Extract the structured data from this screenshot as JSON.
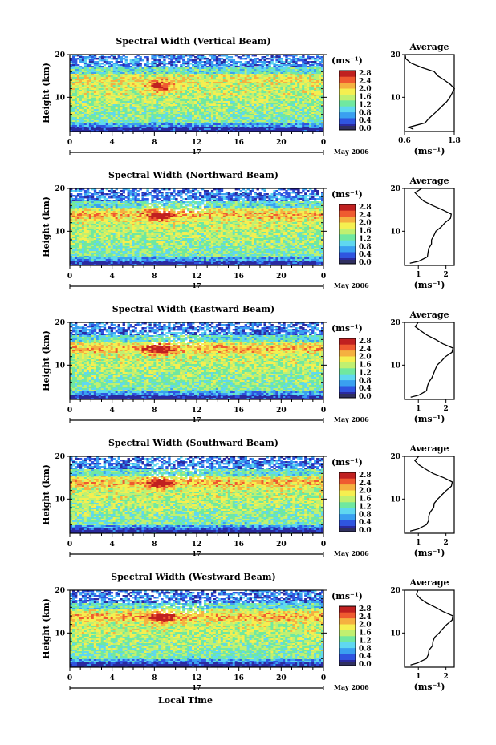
{
  "figure": {
    "common": {
      "ylabel": "Height (km)",
      "x_ticks": [
        "0",
        "4",
        "8",
        "12",
        "16",
        "20",
        "0"
      ],
      "y_ticks": [
        "20",
        "10"
      ],
      "day_label": "17",
      "date_label": "May 2006",
      "unit_label": "(ms⁻¹)",
      "colorbar_ticks": [
        "2.8",
        "2.4",
        "2.0",
        "1.6",
        "1.2",
        "0.8",
        "0.4",
        "0.0"
      ],
      "avg_title": "Average",
      "avg_xlabel": "(ms⁻¹)",
      "xlabel": "Local Time"
    },
    "colors": {
      "scale": [
        "#2a2aa0",
        "#2f55e0",
        "#3aa0f0",
        "#5fd8f0",
        "#70e8a0",
        "#c0f070",
        "#f5ef50",
        "#f5b040",
        "#ef5a30",
        "#c02020"
      ]
    }
  },
  "chart_data": [
    {
      "type": "heatmap",
      "title": "Spectral Width (Vertical Beam)",
      "x_range": [
        0,
        24
      ],
      "y_range": [
        2,
        20
      ],
      "z_range": [
        0.0,
        3.0
      ],
      "avg_profile": {
        "x_ticks": [
          "0.6",
          "1.8"
        ],
        "xlim": [
          0.6,
          1.8
        ],
        "height": [
          2.5,
          3,
          4,
          5,
          6,
          7,
          8,
          9,
          10,
          11,
          12,
          13,
          14,
          15,
          16,
          17,
          18,
          19,
          20
        ],
        "value": [
          0.8,
          0.7,
          1.1,
          1.2,
          1.3,
          1.4,
          1.5,
          1.6,
          1.7,
          1.75,
          1.8,
          1.7,
          1.55,
          1.4,
          1.3,
          1.0,
          0.75,
          0.65,
          0.6
        ]
      }
    },
    {
      "type": "heatmap",
      "title": "Spectral Width (Northward Beam)",
      "x_range": [
        0,
        24
      ],
      "y_range": [
        2,
        20
      ],
      "z_range": [
        0.0,
        3.0
      ],
      "avg_profile": {
        "x_ticks": [
          "1",
          "2"
        ],
        "xlim": [
          0.5,
          2.3
        ],
        "height": [
          2.5,
          3,
          4,
          5,
          6,
          7,
          8,
          9,
          10,
          11,
          12,
          13,
          14,
          15,
          16,
          17,
          18,
          19,
          20
        ],
        "value": [
          0.7,
          1.0,
          1.3,
          1.35,
          1.4,
          1.45,
          1.5,
          1.55,
          1.65,
          1.8,
          1.95,
          2.15,
          2.2,
          1.9,
          1.5,
          1.2,
          1.0,
          0.9,
          1.1
        ]
      }
    },
    {
      "type": "heatmap",
      "title": "Spectral Width (Eastward Beam)",
      "x_range": [
        0,
        24
      ],
      "y_range": [
        2,
        20
      ],
      "z_range": [
        0.0,
        3.0
      ],
      "avg_profile": {
        "x_ticks": [
          "1",
          "2"
        ],
        "xlim": [
          0.5,
          2.3
        ],
        "height": [
          2.5,
          3,
          4,
          5,
          6,
          7,
          8,
          9,
          10,
          11,
          12,
          13,
          14,
          15,
          16,
          17,
          18,
          19,
          20
        ],
        "value": [
          0.7,
          1.0,
          1.3,
          1.35,
          1.4,
          1.5,
          1.55,
          1.6,
          1.7,
          1.85,
          2.0,
          2.2,
          2.25,
          1.9,
          1.6,
          1.3,
          1.1,
          0.9,
          1.0
        ]
      }
    },
    {
      "type": "heatmap",
      "title": "Spectral Width (Southward Beam)",
      "x_range": [
        0,
        24
      ],
      "y_range": [
        2,
        20
      ],
      "z_range": [
        0.0,
        3.0
      ],
      "avg_profile": {
        "x_ticks": [
          "1",
          "2"
        ],
        "xlim": [
          0.5,
          2.3
        ],
        "height": [
          2.5,
          3,
          4,
          5,
          6,
          7,
          8,
          9,
          10,
          11,
          12,
          13,
          14,
          15,
          16,
          17,
          18,
          19,
          20
        ],
        "value": [
          0.7,
          1.0,
          1.3,
          1.35,
          1.4,
          1.45,
          1.55,
          1.6,
          1.7,
          1.85,
          2.0,
          2.2,
          2.25,
          1.95,
          1.55,
          1.25,
          1.05,
          0.9,
          1.0
        ]
      }
    },
    {
      "type": "heatmap",
      "title": "Spectral Width (Westward Beam)",
      "x_range": [
        0,
        24
      ],
      "y_range": [
        2,
        20
      ],
      "z_range": [
        0.0,
        3.0
      ],
      "avg_profile": {
        "x_ticks": [
          "1",
          "2"
        ],
        "xlim": [
          0.5,
          2.3
        ],
        "height": [
          2.5,
          3,
          4,
          5,
          6,
          7,
          8,
          9,
          10,
          11,
          12,
          13,
          14,
          15,
          16,
          17,
          18,
          19,
          20
        ],
        "value": [
          0.7,
          1.0,
          1.3,
          1.35,
          1.4,
          1.5,
          1.55,
          1.6,
          1.75,
          1.9,
          2.05,
          2.2,
          2.25,
          1.9,
          1.6,
          1.3,
          1.1,
          0.95,
          1.0
        ]
      }
    }
  ]
}
